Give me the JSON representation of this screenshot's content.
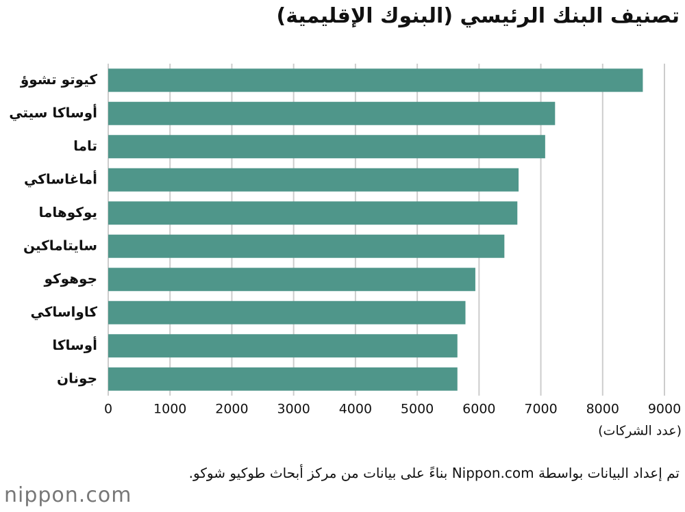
{
  "chart_data": {
    "type": "barh",
    "title": "تصنيف البنك الرئيسي (البنوك الإقليمية)",
    "categories": [
      "كيوتو تشوؤ",
      "أوساكا سيتي",
      "تاما",
      "أماغاساكي",
      "يوكوهاما",
      "سايتاماكين",
      "جوهوكو",
      "كاواساكي",
      "أوساكا",
      "جونان"
    ],
    "values": [
      8650,
      7230,
      7070,
      6640,
      6620,
      6410,
      5940,
      5780,
      5650,
      5650
    ],
    "color": "#4f968a",
    "xlim": [
      0,
      9000
    ],
    "xticks": [
      0,
      1000,
      2000,
      3000,
      4000,
      5000,
      6000,
      7000,
      8000,
      9000
    ],
    "xlabel": "(عدد الشركات)",
    "grid": true
  },
  "footer": {
    "note": "تم إعداد البيانات بواسطة Nippon.com بناءً على بيانات من مركز أبحاث طوكيو شوكو.",
    "logo": "nippon.com"
  }
}
